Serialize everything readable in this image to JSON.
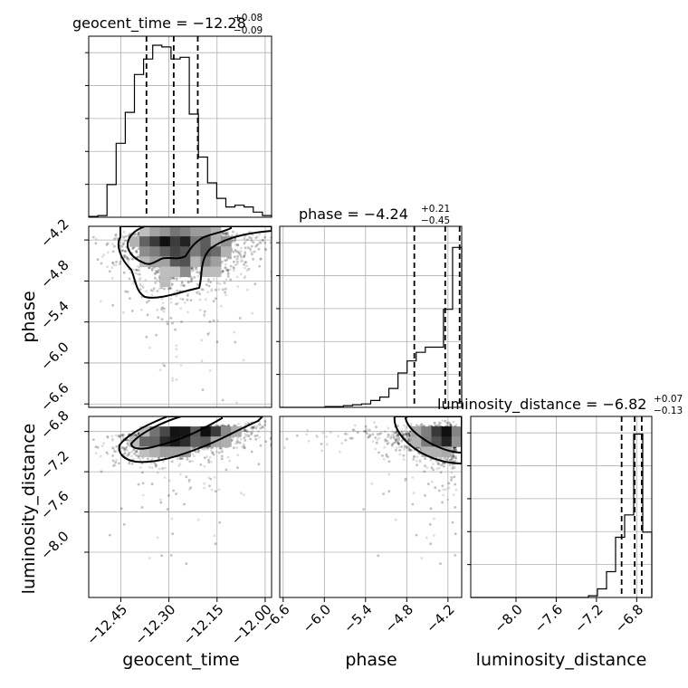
{
  "chart_data": {
    "type": "corner",
    "parameters": [
      {
        "name": "geocent_time",
        "range": [
          -12.55,
          -11.98
        ],
        "ticks": [
          -12.45,
          -12.3,
          -12.15,
          -12.0
        ],
        "tick_labels": [
          "−12.45",
          "−12.30",
          "−12.15",
          "−12.00"
        ],
        "title_main": "geocent_time = −12.28",
        "title_sup": "+0.08",
        "title_sub": "−0.09",
        "quantiles": [
          -12.37,
          -12.285,
          -12.21
        ],
        "hist_edges": [
          -12.55,
          -12.5215,
          -12.493,
          -12.4645,
          -12.436,
          -12.4075,
          -12.379,
          -12.3505,
          -12.322,
          -12.2935,
          -12.265,
          -12.2365,
          -12.208,
          -12.1795,
          -12.151,
          -12.1225,
          -12.094,
          -12.0655,
          -12.037,
          -12.0085,
          -11.98
        ],
        "hist_counts": [
          0.005,
          0.01,
          0.19,
          0.43,
          0.61,
          0.83,
          0.92,
          1.0,
          0.99,
          0.92,
          0.93,
          0.6,
          0.35,
          0.2,
          0.11,
          0.06,
          0.07,
          0.06,
          0.03,
          0.01
        ]
      },
      {
        "name": "phase",
        "range": [
          -6.65,
          -4.0
        ],
        "ticks": [
          -6.6,
          -6.0,
          -5.4,
          -4.8,
          -4.2
        ],
        "tick_labels": [
          "−6.6",
          "−6.0",
          "−5.4",
          "−4.8",
          "−4.2"
        ],
        "title_main": "phase = −4.24",
        "title_sup": "+0.21",
        "title_sub": "−0.45",
        "quantiles": [
          -4.69,
          -4.24,
          -4.03
        ],
        "hist_edges": [
          -6.65,
          -6.5175,
          -6.385,
          -6.2525,
          -6.12,
          -5.9875,
          -5.855,
          -5.7225,
          -5.59,
          -5.4575,
          -5.325,
          -5.1925,
          -5.06,
          -4.9275,
          -4.795,
          -4.6625,
          -4.53,
          -4.3975,
          -4.265,
          -4.1325,
          -4.0
        ],
        "hist_counts": [
          0.0,
          0.0,
          0.0,
          0.0,
          0.0,
          0.005,
          0.005,
          0.01,
          0.015,
          0.02,
          0.04,
          0.06,
          0.11,
          0.2,
          0.27,
          0.32,
          0.35,
          0.35,
          0.57,
          0.93
        ]
      },
      {
        "name": "luminosity_distance",
        "range": [
          -8.45,
          -6.65
        ],
        "ticks": [
          -8.0,
          -7.6,
          -7.2,
          -6.8
        ],
        "tick_labels": [
          "−8.0",
          "−7.6",
          "−7.2",
          "−6.8"
        ],
        "title_main": "luminosity_distance = −6.82",
        "title_sup": "+0.07",
        "title_sub": "−0.13",
        "quantiles": [
          -6.95,
          -6.82,
          -6.75
        ],
        "hist_edges": [
          -8.45,
          -8.36,
          -8.27,
          -8.18,
          -8.09,
          -8.0,
          -7.91,
          -7.82,
          -7.73,
          -7.64,
          -7.55,
          -7.46,
          -7.37,
          -7.28,
          -7.19,
          -7.1,
          -7.01,
          -6.92,
          -6.83,
          -6.74,
          -6.65
        ],
        "hist_counts": [
          0.0,
          0.0,
          0.0,
          0.0,
          0.0,
          0.0,
          0.0,
          0.0,
          0.0,
          0.0,
          0.0,
          0.0,
          0.0,
          0.01,
          0.05,
          0.15,
          0.35,
          0.48,
          0.95,
          0.38
        ]
      }
    ],
    "pairs": [
      {
        "x": "geocent_time",
        "y": "phase"
      },
      {
        "x": "geocent_time",
        "y": "luminosity_distance"
      },
      {
        "x": "phase",
        "y": "luminosity_distance"
      }
    ],
    "grid": true,
    "legend": "none"
  }
}
